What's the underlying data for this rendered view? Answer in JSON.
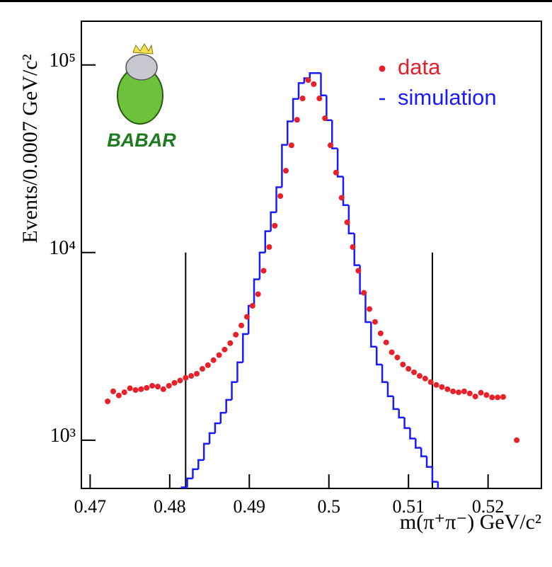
{
  "chart_data": {
    "type": "scatter-histogram",
    "y_label": "Events/0.0007 GeV/c²",
    "x_label": "m(π⁺π⁻) GeV/c²",
    "logo": "BABAR",
    "xlim": [
      0.4689,
      0.5267
    ],
    "xticks": [
      0.47,
      0.48,
      0.49,
      0.5,
      0.51,
      0.52
    ],
    "ylim": [
      553,
      171000
    ],
    "yticks": [
      {
        "value": 1000,
        "label": "10³"
      },
      {
        "value": 10000,
        "label": "10⁴"
      },
      {
        "value": 100000,
        "label": "10⁵"
      }
    ],
    "log_y": true,
    "legend": "upper right",
    "markers": [
      {
        "x": 0.482,
        "top": 10000
      },
      {
        "x": 0.513,
        "top": 10000
      }
    ],
    "series": [
      {
        "name": "data",
        "color": "#e8202a",
        "x": [
          0.4722,
          0.4729,
          0.4736,
          0.4743,
          0.475,
          0.4757,
          0.4764,
          0.4771,
          0.4778,
          0.4785,
          0.4792,
          0.4799,
          0.4806,
          0.4813,
          0.482,
          0.4827,
          0.4834,
          0.4841,
          0.4848,
          0.4855,
          0.4862,
          0.4869,
          0.4876,
          0.4883,
          0.489,
          0.4897,
          0.4904,
          0.4911,
          0.4918,
          0.4925,
          0.4932,
          0.4939,
          0.4946,
          0.4953,
          0.496,
          0.4967,
          0.4974,
          0.4981,
          0.4988,
          0.4995,
          0.5002,
          0.5009,
          0.5016,
          0.5023,
          0.503,
          0.5037,
          0.5044,
          0.5051,
          0.5058,
          0.5065,
          0.5072,
          0.5079,
          0.5086,
          0.5093,
          0.51,
          0.5107,
          0.5114,
          0.5121,
          0.5128,
          0.5135,
          0.5142,
          0.5149,
          0.5156,
          0.5163,
          0.517,
          0.5177,
          0.5184,
          0.5191,
          0.5198,
          0.5205,
          0.5212,
          0.5219,
          0.5236
        ],
        "values": [
          1610,
          1820,
          1730,
          1800,
          1890,
          1850,
          1870,
          1900,
          1950,
          1930,
          1870,
          1950,
          2020,
          2080,
          2150,
          2200,
          2260,
          2400,
          2510,
          2670,
          2840,
          3040,
          3290,
          3650,
          4090,
          4540,
          5200,
          6000,
          8000,
          10700,
          13900,
          20000,
          27300,
          37300,
          51000,
          66300,
          83000,
          79000,
          66300,
          52000,
          37300,
          26700,
          19600,
          14500,
          10700,
          8000,
          6100,
          5000,
          4270,
          3710,
          3320,
          2940,
          2760,
          2530,
          2400,
          2300,
          2200,
          2130,
          2040,
          1970,
          1920,
          1870,
          1820,
          1800,
          1820,
          1775,
          1710,
          1790,
          1740,
          1690,
          1690,
          1700,
          1000
        ]
      },
      {
        "name": "simulation",
        "color": "#1a1aff",
        "bins": [
          0.4815,
          0.4822,
          0.4829,
          0.4836,
          0.4843,
          0.485,
          0.4857,
          0.4864,
          0.4871,
          0.4878,
          0.4885,
          0.4892,
          0.4899,
          0.4906,
          0.4913,
          0.492,
          0.4927,
          0.4934,
          0.4941,
          0.4948,
          0.4955,
          0.4962,
          0.4969,
          0.4976,
          0.4983,
          0.499,
          0.4997,
          0.5004,
          0.5011,
          0.5018,
          0.5025,
          0.5032,
          0.5039,
          0.5046,
          0.5053,
          0.506,
          0.5067,
          0.5074,
          0.5081,
          0.5088,
          0.5095,
          0.5102,
          0.5109,
          0.5116,
          0.5123,
          0.513,
          0.5137
        ],
        "values": [
          560,
          625,
          700,
          784,
          957,
          1090,
          1230,
          1400,
          1640,
          2040,
          2600,
          3680,
          5200,
          7200,
          10000,
          13000,
          16400,
          22300,
          37500,
          50000,
          65900,
          80000,
          85000,
          90500,
          90500,
          68800,
          50800,
          35900,
          25400,
          17900,
          12650,
          8560,
          6050,
          4260,
          3150,
          2530,
          2040,
          1715,
          1465,
          1320,
          1160,
          1020,
          910,
          820,
          720,
          600
        ]
      }
    ]
  }
}
